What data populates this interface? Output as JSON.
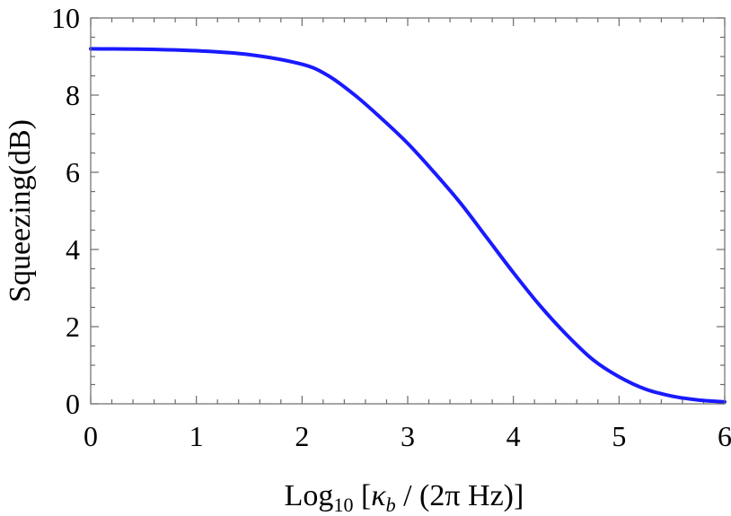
{
  "chart_data": {
    "type": "line",
    "xlabel": {
      "prefix": "Log",
      "sub": "10",
      "open": " [",
      "kappa": "κ",
      "kappa_sub": "b",
      "rest": " / (2π Hz)]"
    },
    "ylabel": "Squeezing(dB)",
    "xlim": [
      0,
      6
    ],
    "ylim": [
      0,
      10
    ],
    "xticks": [
      "0",
      "1",
      "2",
      "3",
      "4",
      "5",
      "6"
    ],
    "yticks": [
      "0",
      "2",
      "4",
      "6",
      "8",
      "10"
    ],
    "grid": false,
    "series": [
      {
        "color": "#1a1aff",
        "x": [
          0,
          0.5,
          1.0,
          1.5,
          2.0,
          2.25,
          2.5,
          2.75,
          3.0,
          3.25,
          3.5,
          3.75,
          4.0,
          4.25,
          4.5,
          4.75,
          5.0,
          5.25,
          5.5,
          5.75,
          6.0
        ],
        "y": [
          9.2,
          9.19,
          9.15,
          9.05,
          8.8,
          8.5,
          8.0,
          7.4,
          6.75,
          6.0,
          5.2,
          4.3,
          3.4,
          2.55,
          1.8,
          1.15,
          0.7,
          0.38,
          0.2,
          0.1,
          0.05
        ]
      }
    ]
  }
}
